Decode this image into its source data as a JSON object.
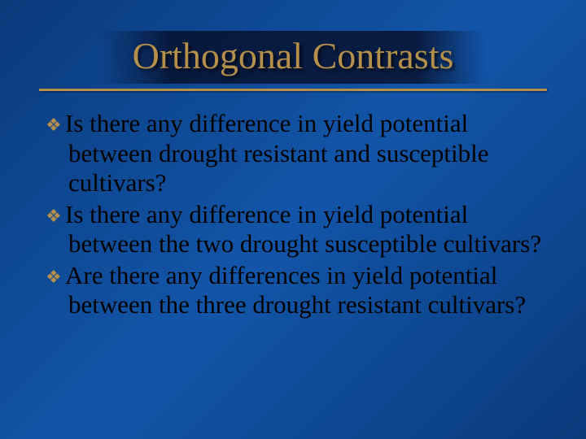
{
  "slide": {
    "title": "Orthogonal Contrasts",
    "title_color": "#b4904a",
    "title_fontsize": 46,
    "rule_color": "#b4904a",
    "background_gradient": [
      "#0a3a7a",
      "#1255a8",
      "#0a3a7a"
    ],
    "bullet_glyph": "❖",
    "bullet_color": "#b4904a",
    "body_fontsize": 31,
    "body_color": "#000000",
    "items": [
      "Is there any difference in yield potential between drought resistant and susceptible cultivars?",
      "Is there any difference in yield potential between the two drought susceptible cultivars?",
      "Are there any differences in yield potential between the three drought resistant cultivars?"
    ]
  }
}
